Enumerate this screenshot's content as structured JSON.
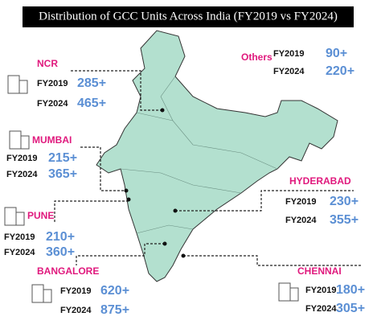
{
  "title": "Distribution of GCC Units Across India (FY2019 vs FY2024)",
  "regions": [
    {
      "name": "NCR",
      "rows": [
        {
          "label": "FY2019",
          "value": "285+"
        },
        {
          "label": "FY2024",
          "value": "465+"
        }
      ]
    },
    {
      "name": "Others",
      "rows": [
        {
          "label": "FY2019",
          "value": "90+"
        },
        {
          "label": "FY2024",
          "value": "220+"
        }
      ]
    },
    {
      "name": "MUMBAI",
      "rows": [
        {
          "label": "FY2019",
          "value": "215+"
        },
        {
          "label": "FY2024",
          "value": "365+"
        }
      ]
    },
    {
      "name": "PUNE",
      "rows": [
        {
          "label": "FY2019",
          "value": "210+"
        },
        {
          "label": "FY2024",
          "value": "360+"
        }
      ]
    },
    {
      "name": "HYDERABAD",
      "rows": [
        {
          "label": "FY2019",
          "value": "230+"
        },
        {
          "label": "FY2024",
          "value": "355+"
        }
      ]
    },
    {
      "name": "BANGALORE",
      "rows": [
        {
          "label": "FY2019",
          "value": "620+"
        },
        {
          "label": "FY2024",
          "value": "875+"
        }
      ]
    },
    {
      "name": "CHENNAI",
      "rows": [
        {
          "label": "FY2019",
          "value": "180+"
        },
        {
          "label": "FY2024",
          "value": "305+"
        }
      ]
    }
  ]
}
